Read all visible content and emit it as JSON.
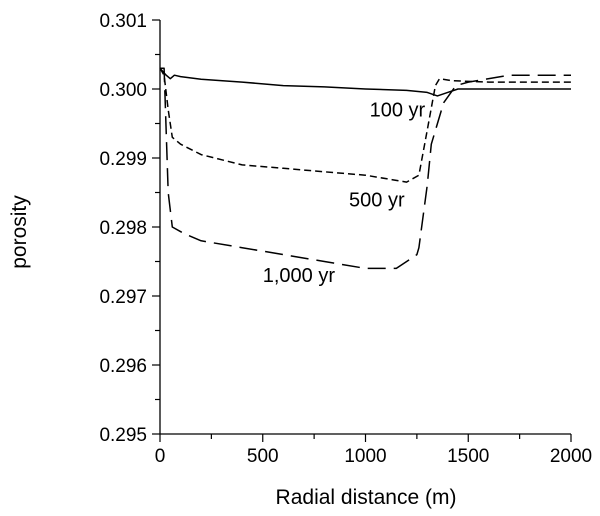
{
  "chart_data": {
    "type": "line",
    "xlabel": "Radial distance (m)",
    "ylabel": "porosity",
    "xlim": [
      0,
      2000
    ],
    "ylim": [
      0.295,
      0.301
    ],
    "x_ticks": [
      0,
      500,
      1000,
      1500,
      2000
    ],
    "x_tick_labels": [
      "0",
      "500",
      "1000",
      "1500",
      "2000"
    ],
    "y_ticks": [
      0.295,
      0.296,
      0.297,
      0.298,
      0.299,
      0.3,
      0.301
    ],
    "y_tick_labels": [
      "0.295",
      "0.296",
      "0.297",
      "0.298",
      "0.299",
      "0.300",
      "0.301"
    ],
    "grid": false,
    "series": [
      {
        "name": "100 yr",
        "line_style": "solid",
        "x": [
          0,
          15,
          30,
          50,
          70,
          100,
          200,
          400,
          600,
          800,
          1000,
          1200,
          1300,
          1350,
          1400,
          1450,
          1500,
          2000
        ],
        "y": [
          0.3003,
          0.30025,
          0.3002,
          0.30015,
          0.3002,
          0.30018,
          0.30014,
          0.3001,
          0.30005,
          0.30003,
          0.3,
          0.29998,
          0.29995,
          0.2999,
          0.29995,
          0.3,
          0.3,
          0.3
        ]
      },
      {
        "name": "500 yr",
        "line_style": "dashed",
        "x": [
          0,
          20,
          40,
          60,
          100,
          200,
          400,
          600,
          800,
          1000,
          1200,
          1260,
          1300,
          1340,
          1360,
          1420,
          1600,
          2000
        ],
        "y": [
          0.3003,
          0.3002,
          0.2997,
          0.2993,
          0.2992,
          0.29905,
          0.2989,
          0.29885,
          0.2988,
          0.29875,
          0.29865,
          0.29875,
          0.2994,
          0.30005,
          0.30015,
          0.30012,
          0.3001,
          0.3001
        ]
      },
      {
        "name": "1,000 yr",
        "line_style": "long-dashed",
        "x": [
          0,
          20,
          40,
          60,
          120,
          200,
          400,
          600,
          800,
          1000,
          1150,
          1250,
          1260,
          1300,
          1320,
          1380,
          1440,
          1500,
          1700,
          2000
        ],
        "y": [
          0.3003,
          0.3003,
          0.2985,
          0.298,
          0.2979,
          0.2978,
          0.2977,
          0.2976,
          0.2975,
          0.2974,
          0.2974,
          0.2976,
          0.2977,
          0.2986,
          0.2992,
          0.2998,
          0.30005,
          0.3001,
          0.3002,
          0.3002
        ]
      }
    ],
    "annotations": [
      {
        "text": "100 yr",
        "x": 1020,
        "y": 0.2996
      },
      {
        "text": "500 yr",
        "x": 920,
        "y": 0.2983
      },
      {
        "text": "1,000 yr",
        "x": 500,
        "y": 0.2972
      }
    ]
  }
}
